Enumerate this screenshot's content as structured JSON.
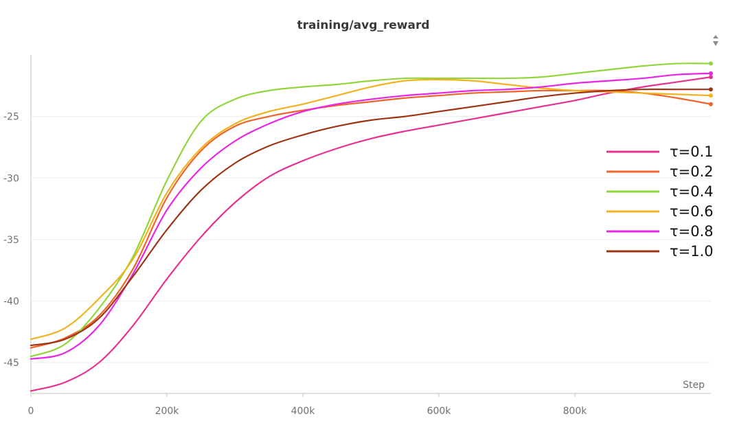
{
  "chart_data": {
    "type": "line",
    "title": "training/avg_reward",
    "xlabel": "Step",
    "ylabel": "",
    "xlim": [
      0,
      1000000
    ],
    "ylim": [
      -47.5,
      -20
    ],
    "x_ticks": [
      0,
      200000,
      400000,
      600000,
      800000
    ],
    "x_tick_labels": [
      "0",
      "200k",
      "400k",
      "600k",
      "800k"
    ],
    "y_ticks": [
      -25,
      -30,
      -35,
      -40,
      -45
    ],
    "y_tick_labels": [
      "-25",
      "-30",
      "-35",
      "-40",
      "-45"
    ],
    "grid": true,
    "legend_position": "right",
    "x": [
      0,
      50000,
      100000,
      150000,
      200000,
      250000,
      300000,
      350000,
      400000,
      450000,
      500000,
      550000,
      600000,
      650000,
      700000,
      750000,
      800000,
      850000,
      900000,
      950000,
      1000000
    ],
    "series": [
      {
        "name": "τ=0.1",
        "color": "#e8318f",
        "values": [
          -47.3,
          -46.6,
          -45.0,
          -42.0,
          -38.2,
          -34.8,
          -32.0,
          -29.9,
          -28.6,
          -27.6,
          -26.8,
          -26.2,
          -25.7,
          -25.2,
          -24.7,
          -24.2,
          -23.7,
          -23.1,
          -22.6,
          -22.2,
          -21.8
        ]
      },
      {
        "name": "τ=0.2",
        "color": "#f0632a",
        "values": [
          -43.8,
          -43.0,
          -41.2,
          -37.4,
          -31.6,
          -27.8,
          -25.8,
          -25.0,
          -24.5,
          -24.1,
          -23.8,
          -23.5,
          -23.3,
          -23.1,
          -23.0,
          -22.9,
          -22.9,
          -22.9,
          -23.1,
          -23.5,
          -24.0
        ]
      },
      {
        "name": "τ=0.4",
        "color": "#8fd63a",
        "values": [
          -44.5,
          -43.5,
          -40.6,
          -36.4,
          -30.2,
          -25.4,
          -23.6,
          -22.9,
          -22.6,
          -22.4,
          -22.1,
          -21.9,
          -21.9,
          -21.9,
          -21.9,
          -21.8,
          -21.5,
          -21.2,
          -20.9,
          -20.7,
          -20.7
        ]
      },
      {
        "name": "τ=0.6",
        "color": "#f2b21b",
        "values": [
          -43.1,
          -42.2,
          -39.8,
          -36.6,
          -31.2,
          -27.6,
          -25.6,
          -24.6,
          -24.0,
          -23.3,
          -22.6,
          -22.1,
          -22.0,
          -22.1,
          -22.4,
          -22.7,
          -22.9,
          -23.0,
          -23.1,
          -23.2,
          -23.3
        ]
      },
      {
        "name": "τ=0.8",
        "color": "#e825e6",
        "values": [
          -44.7,
          -44.2,
          -42.0,
          -37.8,
          -32.6,
          -29.2,
          -27.0,
          -25.6,
          -24.6,
          -24.0,
          -23.6,
          -23.3,
          -23.1,
          -22.9,
          -22.8,
          -22.6,
          -22.3,
          -22.1,
          -21.9,
          -21.6,
          -21.5
        ]
      },
      {
        "name": "τ=1.0",
        "color": "#9c3414",
        "values": [
          -43.6,
          -43.1,
          -41.4,
          -38.0,
          -34.2,
          -31.0,
          -28.8,
          -27.4,
          -26.5,
          -25.8,
          -25.3,
          -25.0,
          -24.6,
          -24.2,
          -23.8,
          -23.4,
          -23.1,
          -22.9,
          -22.8,
          -22.8,
          -22.8
        ]
      }
    ]
  }
}
